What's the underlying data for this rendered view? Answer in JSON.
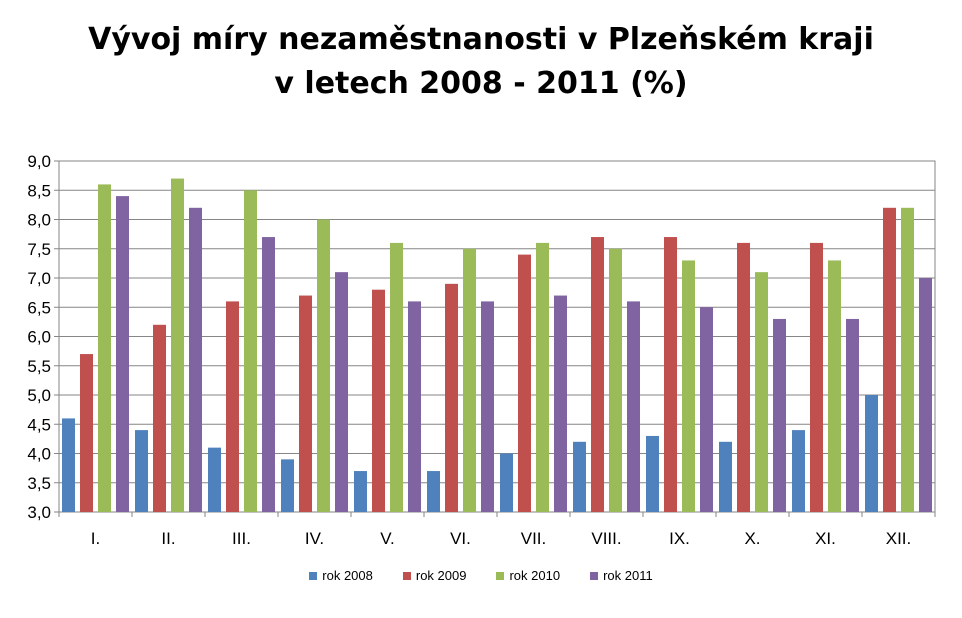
{
  "chart_data": {
    "type": "bar",
    "title_line1": "Vývoj míry nezaměstnanosti v Plzeňském kraji",
    "title_line2": "v letech 2008 - 2011 (%)",
    "categories": [
      "I.",
      "II.",
      "III.",
      "IV.",
      "V.",
      "VI.",
      "VII.",
      "VIII.",
      "IX.",
      "X.",
      "XI.",
      "XII."
    ],
    "series": [
      {
        "name": "rok 2008",
        "color": "#4F81BD",
        "values": [
          4.6,
          4.4,
          4.1,
          3.9,
          3.7,
          3.7,
          4.0,
          4.2,
          4.3,
          4.2,
          4.4,
          5.0
        ]
      },
      {
        "name": "rok 2009",
        "color": "#C0504D",
        "values": [
          5.7,
          6.2,
          6.6,
          6.7,
          6.8,
          6.9,
          7.4,
          7.7,
          7.7,
          7.6,
          7.6,
          8.2
        ]
      },
      {
        "name": "rok 2010",
        "color": "#9BBB59",
        "values": [
          8.6,
          8.7,
          8.5,
          8.0,
          7.6,
          7.5,
          7.6,
          7.5,
          7.3,
          7.1,
          7.3,
          8.2
        ]
      },
      {
        "name": "rok 2011",
        "color": "#8064A2",
        "values": [
          8.4,
          8.2,
          7.7,
          7.1,
          6.6,
          6.6,
          6.7,
          6.6,
          6.5,
          6.3,
          6.3,
          7.0
        ]
      }
    ],
    "ylim": [
      3.0,
      9.0
    ],
    "yticks": [
      "3,0",
      "3,5",
      "4,0",
      "4,5",
      "5,0",
      "5,5",
      "6,0",
      "6,5",
      "7,0",
      "7,5",
      "8,0",
      "8,5",
      "9,0"
    ],
    "grid": true,
    "legend_position": "bottom"
  }
}
